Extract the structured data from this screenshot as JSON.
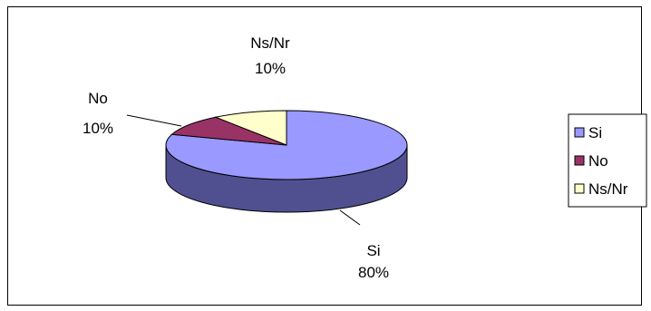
{
  "chart_data": {
    "type": "pie",
    "style": "3d",
    "categories": [
      "Si",
      "No",
      "Ns/Nr"
    ],
    "values": [
      80,
      10,
      10
    ],
    "data_labels": [
      {
        "category": "Si",
        "text": "80%"
      },
      {
        "category": "No",
        "text": "10%"
      },
      {
        "category": "Ns/Nr",
        "text": "10%"
      }
    ],
    "colors": {
      "Si": "#9999ff",
      "Si_side": "#505090",
      "No": "#993366",
      "No_side": "#5c1f3d",
      "Ns/Nr": "#ffffcc",
      "Ns/Nr_side": "#9a9a7a"
    },
    "legend": {
      "position": "right",
      "entries": [
        "Si",
        "No",
        "Ns/Nr"
      ]
    }
  }
}
